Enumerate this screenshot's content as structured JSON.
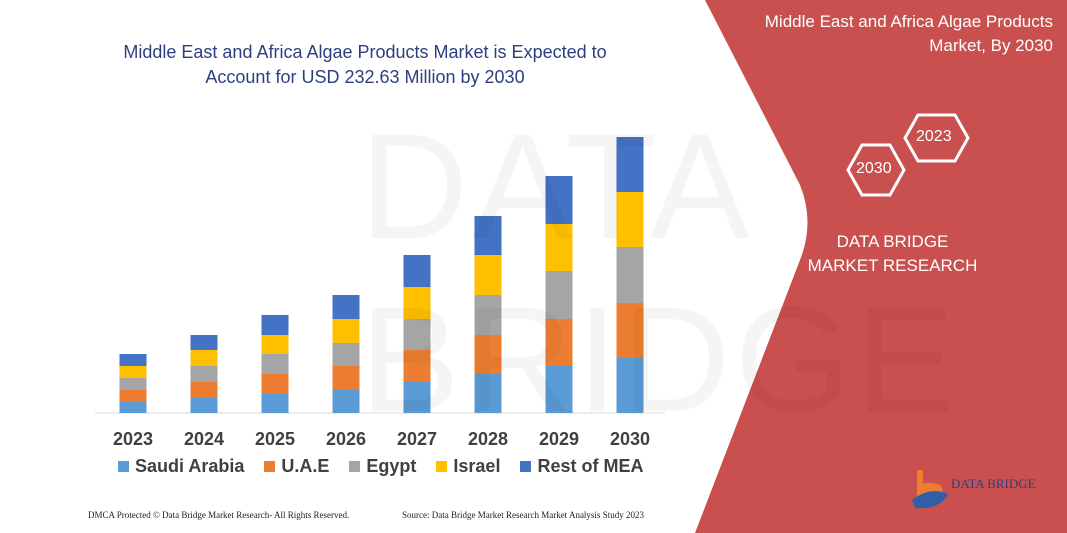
{
  "title": "Middle East and Africa Algae Products Market is Expected to Account for USD 232.63 Million by 2030",
  "side_panel": {
    "title": "Middle East and Africa Algae Products Market, By 2030",
    "hex_years": [
      "2023",
      "2030"
    ],
    "brand": "DATA BRIDGE MARKET RESEARCH",
    "logo_text": "DATA BRIDGE",
    "accent_color": "#c9504e"
  },
  "footer": {
    "left": "DMCA Protected © Data Bridge Market Research- All Rights Reserved.",
    "right": "Source: Data Bridge Market Research Market Analysis Study 2023"
  },
  "chart_data": {
    "type": "bar",
    "stacked": true,
    "title": "Middle East and Africa Algae Products Market is Expected to Account for USD 232.63 Million by 2030",
    "categories": [
      "2023",
      "2024",
      "2025",
      "2026",
      "2027",
      "2028",
      "2029",
      "2030"
    ],
    "series": [
      {
        "name": "Saudi Arabia",
        "color": "#5b9bd5",
        "values": [
          11,
          15,
          19,
          23,
          31,
          39,
          47,
          55
        ]
      },
      {
        "name": "U.A.E",
        "color": "#ed7d31",
        "values": [
          12,
          16,
          20,
          24,
          32,
          39,
          47,
          55
        ]
      },
      {
        "name": "Egypt",
        "color": "#a5a5a5",
        "values": [
          12,
          16,
          20,
          23,
          31,
          40,
          48,
          56
        ]
      },
      {
        "name": "Israel",
        "color": "#ffc000",
        "values": [
          12,
          16,
          19,
          24,
          32,
          40,
          47,
          55
        ]
      },
      {
        "name": "Rest of MEA",
        "color": "#4472c4",
        "values": [
          12,
          15,
          20,
          24,
          32,
          39,
          48,
          55
        ]
      }
    ],
    "y_axis_shown": false,
    "grid": false,
    "legend_position": "bottom"
  }
}
